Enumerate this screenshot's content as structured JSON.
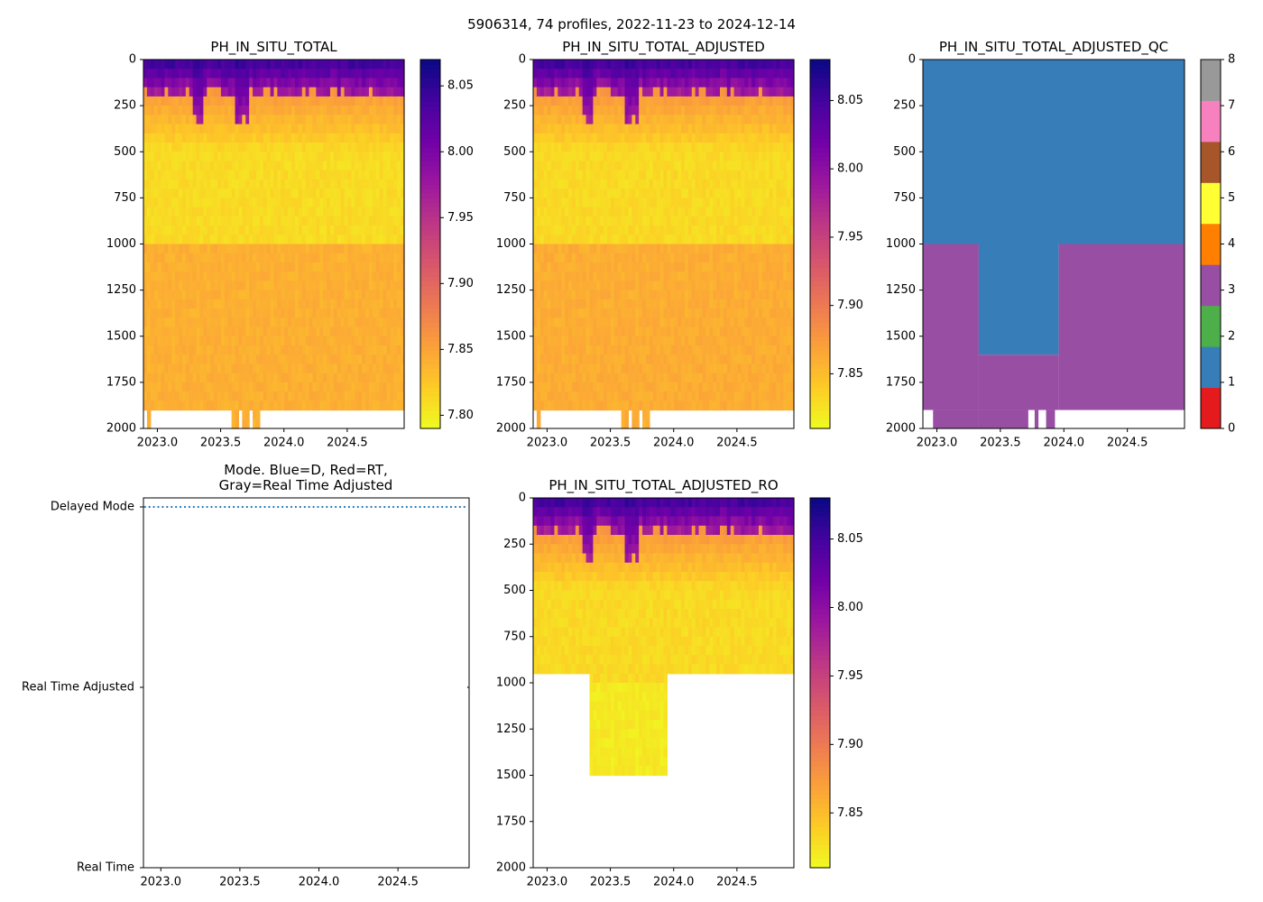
{
  "suptitle": "5906314, 74 profiles, 2022-11-23 to 2024-12-14",
  "colors": {
    "plasma": [
      "#f0f921",
      "#fdca26",
      "#fb9f3a",
      "#ed7953",
      "#d8576b",
      "#bd3786",
      "#9c179e",
      "#7201a8",
      "#46039f",
      "#0d0887"
    ],
    "qc": [
      "#e41a1c",
      "#377eb8",
      "#4daf4a",
      "#984ea3",
      "#ff7f00",
      "#ffff33",
      "#a65628",
      "#f781bf",
      "#999999"
    ],
    "mode_points": "#1f77b4"
  },
  "chart_data": [
    {
      "id": "ph",
      "type": "heatmap",
      "title": "PH_IN_SITU_TOTAL",
      "x_ticks": [
        "2023.0",
        "2023.5",
        "2024.0",
        "2024.5"
      ],
      "x_tick_values": [
        2023.0,
        2023.5,
        2024.0,
        2024.5
      ],
      "xlim": [
        2022.89,
        2024.95
      ],
      "y_ticks": [
        "0",
        "250",
        "500",
        "750",
        "1000",
        "1250",
        "1500",
        "1750",
        "2000"
      ],
      "ylim": [
        2000,
        0
      ],
      "colorbar": {
        "ticks": [
          "7.80",
          "7.85",
          "7.90",
          "7.95",
          "8.00",
          "8.05"
        ],
        "tick_values": [
          7.8,
          7.85,
          7.9,
          7.95,
          8.0,
          8.05
        ],
        "vmin": 7.79,
        "vmax": 8.07
      },
      "profile_count": 74,
      "max_depth": 1900,
      "surface_value": 8.05,
      "mid_value": 7.81,
      "deep_value": 7.84
    },
    {
      "id": "ph_adj",
      "type": "heatmap",
      "title": "PH_IN_SITU_TOTAL_ADJUSTED",
      "x_ticks": [
        "2023.0",
        "2023.5",
        "2024.0",
        "2024.5"
      ],
      "x_tick_values": [
        2023.0,
        2023.5,
        2024.0,
        2024.5
      ],
      "xlim": [
        2022.89,
        2024.95
      ],
      "y_ticks": [
        "0",
        "250",
        "500",
        "750",
        "1000",
        "1250",
        "1500",
        "1750",
        "2000"
      ],
      "ylim": [
        2000,
        0
      ],
      "colorbar": {
        "ticks": [
          "7.85",
          "7.90",
          "7.95",
          "8.00",
          "8.05"
        ],
        "tick_values": [
          7.85,
          7.9,
          7.95,
          8.0,
          8.05
        ],
        "vmin": 7.81,
        "vmax": 8.08
      },
      "profile_count": 74,
      "max_depth": 1900,
      "surface_value": 8.06,
      "mid_value": 7.83,
      "deep_value": 7.86
    },
    {
      "id": "ph_qc",
      "type": "heatmap",
      "title": "PH_IN_SITU_TOTAL_ADJUSTED_QC",
      "x_ticks": [
        "2023.0",
        "2023.5",
        "2024.0",
        "2024.5"
      ],
      "x_tick_values": [
        2023.0,
        2023.5,
        2024.0,
        2024.5
      ],
      "xlim": [
        2022.89,
        2024.95
      ],
      "y_ticks": [
        "0",
        "250",
        "500",
        "750",
        "1000",
        "1250",
        "1500",
        "1750",
        "2000"
      ],
      "ylim": [
        2000,
        0
      ],
      "colorbar": {
        "ticks": [
          "0",
          "1",
          "2",
          "3",
          "4",
          "5",
          "6",
          "7",
          "8"
        ],
        "vmin": 0,
        "vmax": 8
      },
      "regions": [
        {
          "flag": 1,
          "x0": 2022.89,
          "x1": 2024.95,
          "d0": 0,
          "d1": 1000
        },
        {
          "flag": 3,
          "x0": 2022.89,
          "x1": 2023.33,
          "d0": 1000,
          "d1": 1900
        },
        {
          "flag": 1,
          "x0": 2023.33,
          "x1": 2023.96,
          "d0": 1000,
          "d1": 1600
        },
        {
          "flag": 3,
          "x0": 2023.33,
          "x1": 2023.96,
          "d0": 1600,
          "d1": 1900
        },
        {
          "flag": 3,
          "x0": 2023.96,
          "x1": 2024.95,
          "d0": 1000,
          "d1": 1900
        }
      ]
    },
    {
      "id": "mode",
      "type": "scatter",
      "title_line1": "Mode. Blue=D, Red=RT,",
      "title_line2": "Gray=Real Time Adjusted",
      "x_ticks": [
        "2023.0",
        "2023.5",
        "2024.0",
        "2024.5"
      ],
      "x_tick_values": [
        2023.0,
        2023.5,
        2024.0,
        2024.5
      ],
      "xlim": [
        2022.89,
        2024.95
      ],
      "y_categories": [
        "Real Time",
        "Real Time Adjusted",
        "Delayed Mode"
      ],
      "points": [
        {
          "mode": "Delayed Mode",
          "x_start": 2022.9,
          "x_end": 2024.92,
          "count": 73
        },
        {
          "mode": "Real Time Adjusted",
          "x": 2024.95,
          "count": 1
        }
      ]
    },
    {
      "id": "ph_ro",
      "type": "heatmap",
      "title": "PH_IN_SITU_TOTAL_ADJUSTED_RO",
      "x_ticks": [
        "2023.0",
        "2023.5",
        "2024.0",
        "2024.5"
      ],
      "x_tick_values": [
        2023.0,
        2023.5,
        2024.0,
        2024.5
      ],
      "xlim": [
        2022.89,
        2024.95
      ],
      "y_ticks": [
        "0",
        "250",
        "500",
        "750",
        "1000",
        "1250",
        "1500",
        "1750",
        "2000"
      ],
      "ylim": [
        2000,
        0
      ],
      "colorbar": {
        "ticks": [
          "7.85",
          "7.90",
          "7.95",
          "8.00",
          "8.05"
        ],
        "tick_values": [
          7.85,
          7.9,
          7.95,
          8.0,
          8.05
        ],
        "vmin": 7.81,
        "vmax": 8.08
      },
      "profile_count": 74,
      "max_depth": 950,
      "deep_window": {
        "x0": 2023.33,
        "x1": 2023.96,
        "max_depth": 1500
      },
      "surface_value": 8.06,
      "mid_value": 7.83,
      "deep_value": 7.82
    }
  ]
}
